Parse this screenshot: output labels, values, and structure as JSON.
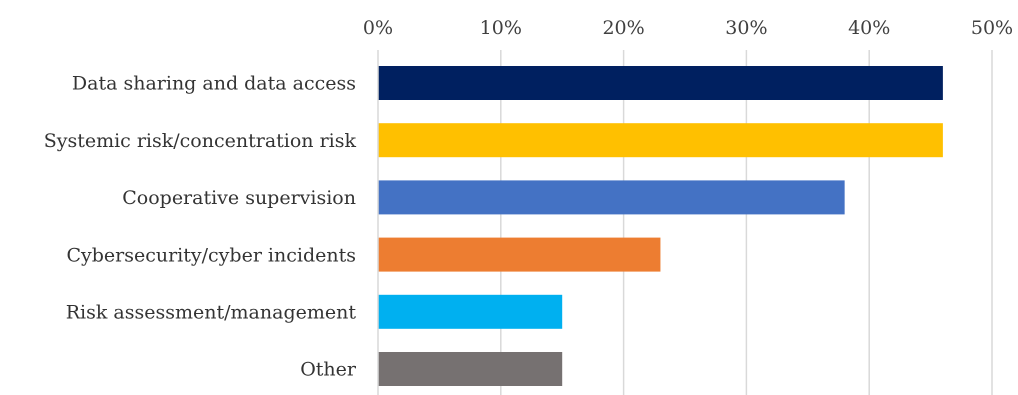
{
  "chart_data": {
    "type": "bar",
    "orientation": "horizontal",
    "xlim": [
      0,
      50
    ],
    "x_tick_values": [
      0,
      10,
      20,
      30,
      40,
      50
    ],
    "x_tick_labels": [
      "0%",
      "10%",
      "20%",
      "30%",
      "40%",
      "50%"
    ],
    "x_axis_position": "top",
    "grid": true,
    "categories": [
      "Data sharing and data access",
      "Systemic risk/concentration risk",
      "Cooperative supervision",
      "Cybersecurity/cyber incidents",
      "Risk assessment/management",
      "Other"
    ],
    "values": [
      46,
      46,
      38,
      23,
      15,
      15
    ],
    "colors": [
      "#002060",
      "#FFC000",
      "#4472C4",
      "#ED7D31",
      "#00B0F0",
      "#767171"
    ]
  }
}
